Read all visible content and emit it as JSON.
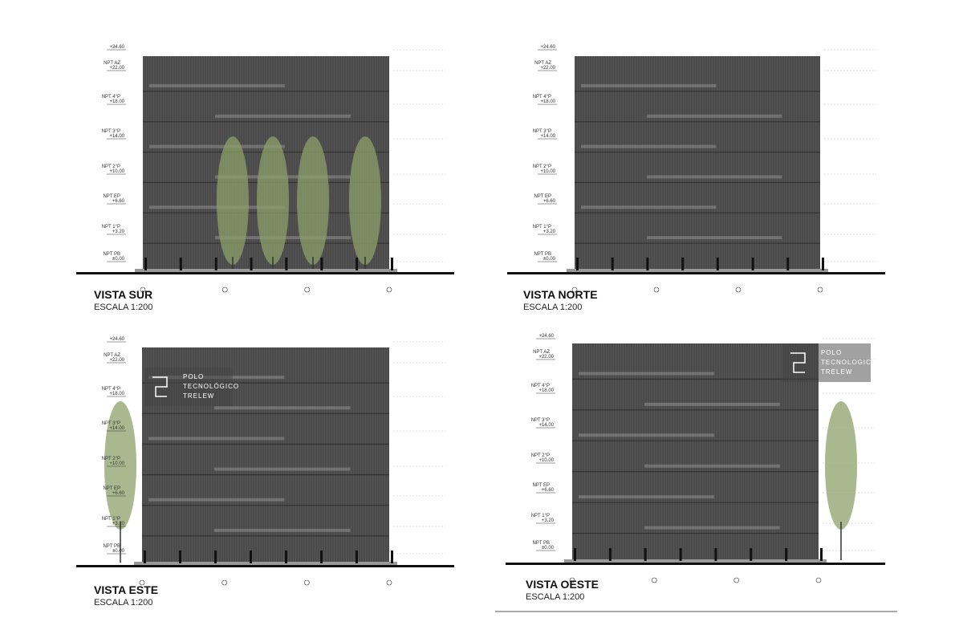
{
  "views": [
    {
      "title": "VISTA SUR",
      "scale": "ESCALA 1:200",
      "levels": [
        {
          "elevation": "+24.60"
        },
        {
          "name": "NPT AZ",
          "elevation": "+22.00"
        },
        {
          "name": "NPT 4°P",
          "elevation": "+18.00"
        },
        {
          "name": "NPT 3°P",
          "elevation": "+14.00"
        },
        {
          "name": "NPT 2°P",
          "elevation": "+10.00"
        },
        {
          "name": "NPT EP",
          "elevation": "+6.60"
        },
        {
          "name": "NPT 1°P",
          "elevation": "+3.20"
        },
        {
          "name": "NPT PB",
          "elevation": "±0.00"
        }
      ]
    },
    {
      "title": "VISTA NORTE",
      "scale": "ESCALA 1:200",
      "levels": [
        {
          "elevation": "+24.60"
        },
        {
          "name": "NPT AZ",
          "elevation": "+22.00"
        },
        {
          "name": "NPT 4°P",
          "elevation": "+18.00"
        },
        {
          "name": "NPT 3°P",
          "elevation": "+14.00"
        },
        {
          "name": "NPT 2°P",
          "elevation": "+10.00"
        },
        {
          "name": "NPT EP",
          "elevation": "+6.60"
        },
        {
          "name": "NPT 1°P",
          "elevation": "+3.20"
        },
        {
          "name": "NPT PB",
          "elevation": "±0.00"
        }
      ]
    },
    {
      "title": "VISTA ESTE",
      "scale": "ESCALA 1:200",
      "levels": [
        {
          "elevation": "+24.60"
        },
        {
          "name": "NPT AZ",
          "elevation": "+22.00"
        },
        {
          "name": "NPT 4°P",
          "elevation": "+18.00"
        },
        {
          "name": "NPT 3°P",
          "elevation": "+14.00"
        },
        {
          "name": "NPT 2°P",
          "elevation": "+10.00"
        },
        {
          "name": "NPT EP",
          "elevation": "+6.60"
        },
        {
          "name": "NPT 1°P",
          "elevation": "+3.20"
        },
        {
          "name": "NPT PB",
          "elevation": "±0.00"
        }
      ],
      "logo": [
        "POLO",
        "TECNOLÓGICO",
        "TRELEW"
      ]
    },
    {
      "title": "VISTA OESTE",
      "scale": "ESCALA 1:200",
      "levels": [
        {
          "elevation": "+24.60"
        },
        {
          "name": "NPT AZ",
          "elevation": "+22.00"
        },
        {
          "name": "NPT 4°P",
          "elevation": "+18.00"
        },
        {
          "name": "NPT 3°P",
          "elevation": "+14.00"
        },
        {
          "name": "NPT 2°P",
          "elevation": "+10.00"
        },
        {
          "name": "NPT EP",
          "elevation": "+6.60"
        },
        {
          "name": "NPT 1°P",
          "elevation": "+3.20"
        },
        {
          "name": "NPT PB",
          "elevation": "±0.00"
        }
      ],
      "logo": [
        "POLO",
        "TECNOLOGICO",
        "TRELEW"
      ]
    }
  ]
}
